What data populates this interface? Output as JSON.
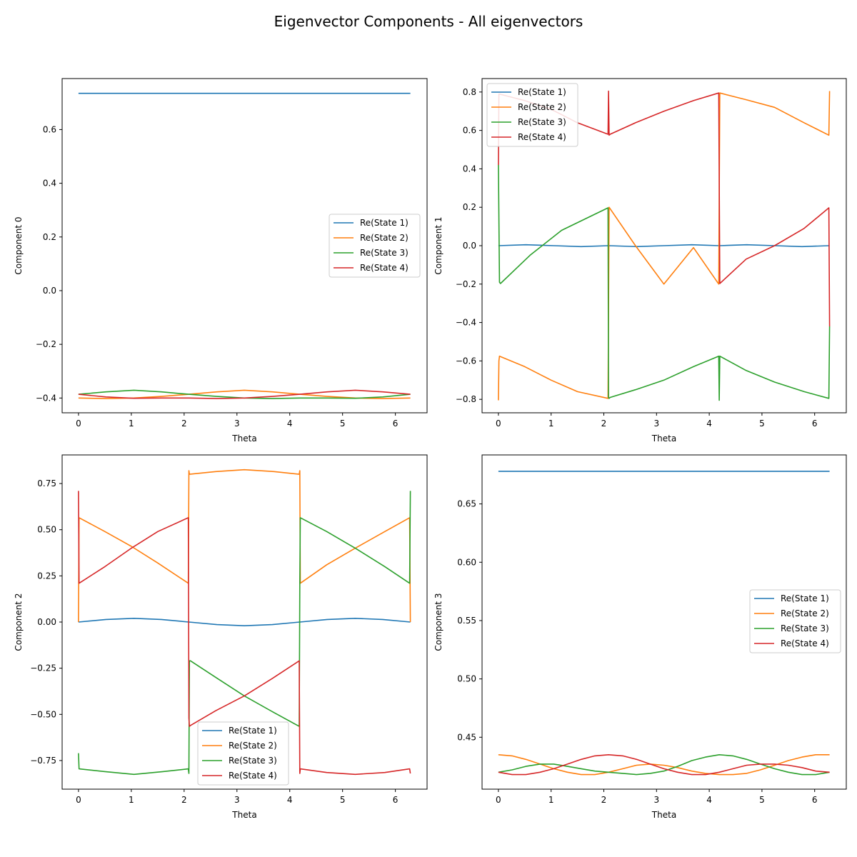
{
  "figure": {
    "title": "Eigenvector Components - All eigenvectors"
  },
  "colors": {
    "state1": "#1f77b4",
    "state2": "#ff7f0e",
    "state3": "#2ca02c",
    "state4": "#d62728"
  },
  "chart_data": [
    {
      "type": "line",
      "xlabel": "Theta",
      "ylabel": "Component 0",
      "xlim": [
        -0.31,
        6.6
      ],
      "ylim": [
        -0.455,
        0.79
      ],
      "xticks": [
        "0",
        "1",
        "2",
        "3",
        "4",
        "5",
        "6"
      ],
      "yticks": [
        "0.6",
        "0.4",
        "0.2",
        "0.0",
        "−0.2",
        "−0.4"
      ],
      "ytick_values": [
        0.6,
        0.4,
        0.2,
        0.0,
        -0.2,
        -0.4
      ],
      "legend": "center-right",
      "series": [
        {
          "name": "Re(State 1)",
          "x": [
            0,
            6.283
          ],
          "y": [
            0.735,
            0.735
          ]
        },
        {
          "name": "Re(State 2)",
          "x": [
            0,
            0.52,
            1.05,
            1.57,
            2.09,
            2.62,
            3.14,
            3.67,
            4.19,
            4.71,
            5.24,
            5.76,
            6.283
          ],
          "y": [
            -0.4,
            -0.402,
            -0.4,
            -0.394,
            -0.386,
            -0.377,
            -0.371,
            -0.377,
            -0.386,
            -0.394,
            -0.4,
            -0.402,
            -0.4
          ]
        },
        {
          "name": "Re(State 3)",
          "x": [
            0,
            0.52,
            1.05,
            1.57,
            2.09,
            2.62,
            3.14,
            3.67,
            4.19,
            4.71,
            5.24,
            5.76,
            6.283
          ],
          "y": [
            -0.386,
            -0.377,
            -0.371,
            -0.377,
            -0.386,
            -0.394,
            -0.4,
            -0.402,
            -0.4,
            -0.4,
            -0.401,
            -0.396,
            -0.386
          ]
        },
        {
          "name": "Re(State 4)",
          "x": [
            0,
            0.52,
            1.05,
            1.57,
            2.09,
            2.62,
            3.14,
            3.67,
            4.19,
            4.71,
            5.24,
            5.76,
            6.283
          ],
          "y": [
            -0.386,
            -0.396,
            -0.401,
            -0.4,
            -0.4,
            -0.402,
            -0.4,
            -0.394,
            -0.386,
            -0.377,
            -0.371,
            -0.377,
            -0.386
          ]
        }
      ]
    },
    {
      "type": "line",
      "xlabel": "Theta",
      "ylabel": "Component 1",
      "xlim": [
        -0.31,
        6.6
      ],
      "ylim": [
        -0.87,
        0.87
      ],
      "xticks": [
        "0",
        "1",
        "2",
        "3",
        "4",
        "5",
        "6"
      ],
      "yticks": [
        "0.8",
        "0.6",
        "0.4",
        "0.2",
        "0.0",
        "−0.2",
        "−0.4",
        "−0.6",
        "−0.8"
      ],
      "ytick_values": [
        0.8,
        0.6,
        0.4,
        0.2,
        0.0,
        -0.2,
        -0.4,
        -0.6,
        -0.8
      ],
      "legend": "top-left",
      "series": [
        {
          "name": "Re(State 1)",
          "x": [
            0,
            0.52,
            1.05,
            1.57,
            2.09,
            2.62,
            3.14,
            3.67,
            4.19,
            4.71,
            5.24,
            5.76,
            6.283
          ],
          "y": [
            0,
            0.005,
            0,
            -0.005,
            0,
            -0.005,
            0,
            0.005,
            0,
            0.005,
            0,
            -0.005,
            0
          ]
        },
        {
          "name": "Re(State 2)",
          "x": [
            0,
            0.01,
            0.02,
            0.5,
            1.0,
            1.5,
            2.08,
            2.1,
            2.6,
            3.14,
            3.7,
            4.18,
            4.2,
            4.7,
            5.24,
            5.8,
            6.27,
            6.283
          ],
          "y": [
            -0.805,
            -0.6,
            -0.575,
            -0.63,
            -0.7,
            -0.76,
            -0.795,
            0.2,
            0.0,
            -0.2,
            -0.01,
            -0.2,
            0.795,
            0.76,
            0.72,
            0.64,
            0.575,
            0.805
          ]
        },
        {
          "name": "Re(State 3)",
          "x": [
            0,
            0.02,
            0.04,
            0.6,
            1.2,
            2.08,
            2.09,
            2.1,
            2.12,
            2.6,
            3.14,
            3.7,
            4.18,
            4.19,
            4.2,
            4.7,
            5.24,
            5.8,
            6.27,
            6.283
          ],
          "y": [
            0.42,
            -0.19,
            -0.197,
            -0.05,
            0.08,
            0.197,
            -0.79,
            -0.795,
            -0.79,
            -0.75,
            -0.7,
            -0.63,
            -0.575,
            -0.805,
            -0.575,
            -0.65,
            -0.71,
            -0.76,
            -0.795,
            -0.42
          ]
        },
        {
          "name": "Re(State 4)",
          "x": [
            0,
            0.01,
            0.5,
            1.0,
            1.5,
            2.08,
            2.09,
            2.1,
            2.12,
            2.6,
            3.14,
            3.7,
            4.18,
            4.2,
            4.7,
            5.24,
            5.8,
            6.27,
            6.283
          ],
          "y": [
            0.42,
            0.79,
            0.755,
            0.71,
            0.64,
            0.58,
            0.805,
            0.575,
            0.58,
            0.64,
            0.7,
            0.755,
            0.795,
            -0.197,
            -0.07,
            0.0,
            0.09,
            0.197,
            -0.42
          ]
        }
      ]
    },
    {
      "type": "line",
      "xlabel": "Theta",
      "ylabel": "Component 2",
      "xlim": [
        -0.31,
        6.6
      ],
      "ylim": [
        -0.905,
        0.905
      ],
      "xticks": [
        "0",
        "1",
        "2",
        "3",
        "4",
        "5",
        "6"
      ],
      "yticks": [
        "0.75",
        "0.50",
        "0.25",
        "0.00",
        "−0.25",
        "−0.50",
        "−0.75"
      ],
      "ytick_values": [
        0.75,
        0.5,
        0.25,
        0.0,
        -0.25,
        -0.5,
        -0.75
      ],
      "legend": "bottom-center",
      "series": [
        {
          "name": "Re(State 1)",
          "x": [
            0,
            0.52,
            1.05,
            1.57,
            2.09,
            2.62,
            3.14,
            3.67,
            4.19,
            4.71,
            5.24,
            5.76,
            6.283
          ],
          "y": [
            0,
            0.014,
            0.02,
            0.014,
            0,
            -0.014,
            -0.02,
            -0.014,
            0,
            0.014,
            0.02,
            0.014,
            0
          ]
        },
        {
          "name": "Re(State 2)",
          "x": [
            0,
            0.01,
            0.5,
            1.0,
            1.5,
            2.08,
            2.09,
            2.1,
            2.6,
            3.14,
            3.7,
            4.18,
            4.19,
            4.2,
            4.7,
            5.24,
            5.8,
            6.27,
            6.283
          ],
          "y": [
            0,
            0.565,
            0.49,
            0.41,
            0.32,
            0.21,
            0.82,
            0.8,
            0.815,
            0.825,
            0.815,
            0.8,
            0.82,
            0.21,
            0.31,
            0.4,
            0.49,
            0.565,
            0
          ]
        },
        {
          "name": "Re(State 3)",
          "x": [
            0,
            0.01,
            0.5,
            1.05,
            1.6,
            2.08,
            2.09,
            2.1,
            2.12,
            2.6,
            3.14,
            3.7,
            4.18,
            4.19,
            4.2,
            4.7,
            5.24,
            5.8,
            6.27,
            6.283
          ],
          "y": [
            -0.71,
            -0.795,
            -0.81,
            -0.825,
            -0.81,
            -0.795,
            -0.82,
            -0.21,
            -0.21,
            -0.3,
            -0.4,
            -0.49,
            -0.565,
            0.21,
            0.565,
            0.49,
            0.4,
            0.3,
            0.21,
            0.71
          ]
        },
        {
          "name": "Re(State 4)",
          "x": [
            0,
            0.01,
            0.5,
            1.0,
            1.5,
            2.08,
            2.09,
            2.1,
            2.12,
            2.6,
            3.14,
            3.7,
            4.18,
            4.19,
            4.2,
            4.7,
            5.24,
            5.8,
            6.27,
            6.283
          ],
          "y": [
            0.71,
            0.21,
            0.3,
            0.4,
            0.49,
            0.565,
            -0.52,
            -0.565,
            -0.56,
            -0.48,
            -0.4,
            -0.3,
            -0.21,
            -0.82,
            -0.795,
            -0.815,
            -0.825,
            -0.815,
            -0.795,
            -0.82
          ]
        }
      ]
    },
    {
      "type": "line",
      "xlabel": "Theta",
      "ylabel": "Component 3",
      "xlim": [
        -0.31,
        6.6
      ],
      "ylim": [
        0.4055,
        0.692
      ],
      "xticks": [
        "0",
        "1",
        "2",
        "3",
        "4",
        "5",
        "6"
      ],
      "yticks": [
        "0.65",
        "0.60",
        "0.55",
        "0.50",
        "0.45"
      ],
      "ytick_values": [
        0.65,
        0.6,
        0.55,
        0.5,
        0.45
      ],
      "legend": "center-right",
      "series": [
        {
          "name": "Re(State 1)",
          "x": [
            0,
            6.283
          ],
          "y": [
            0.678,
            0.678
          ]
        },
        {
          "name": "Re(State 2)",
          "x": [
            0,
            0.26,
            0.52,
            0.79,
            1.05,
            1.31,
            1.57,
            1.83,
            2.09,
            2.36,
            2.62,
            2.88,
            3.14,
            3.4,
            3.67,
            3.93,
            4.19,
            4.45,
            4.71,
            4.97,
            5.24,
            5.5,
            5.76,
            6.02,
            6.283
          ],
          "y": [
            0.435,
            0.434,
            0.431,
            0.427,
            0.423,
            0.42,
            0.418,
            0.418,
            0.42,
            0.423,
            0.426,
            0.427,
            0.426,
            0.424,
            0.421,
            0.419,
            0.418,
            0.418,
            0.419,
            0.422,
            0.426,
            0.43,
            0.433,
            0.435,
            0.435
          ]
        },
        {
          "name": "Re(State 3)",
          "x": [
            0,
            0.26,
            0.52,
            0.79,
            1.05,
            1.31,
            1.57,
            1.83,
            2.09,
            2.36,
            2.62,
            2.88,
            3.14,
            3.4,
            3.67,
            3.93,
            4.19,
            4.45,
            4.71,
            4.97,
            5.24,
            5.5,
            5.76,
            6.02,
            6.283
          ],
          "y": [
            0.42,
            0.422,
            0.425,
            0.427,
            0.427,
            0.425,
            0.423,
            0.421,
            0.42,
            0.419,
            0.418,
            0.419,
            0.421,
            0.425,
            0.43,
            0.433,
            0.435,
            0.434,
            0.431,
            0.427,
            0.423,
            0.42,
            0.418,
            0.418,
            0.42
          ]
        },
        {
          "name": "Re(State 4)",
          "x": [
            0,
            0.26,
            0.52,
            0.79,
            1.05,
            1.31,
            1.57,
            1.83,
            2.09,
            2.36,
            2.62,
            2.88,
            3.14,
            3.4,
            3.67,
            3.93,
            4.19,
            4.45,
            4.71,
            4.97,
            5.24,
            5.5,
            5.76,
            6.02,
            6.283
          ],
          "y": [
            0.42,
            0.418,
            0.418,
            0.42,
            0.423,
            0.427,
            0.431,
            0.434,
            0.435,
            0.434,
            0.431,
            0.427,
            0.423,
            0.42,
            0.418,
            0.418,
            0.42,
            0.423,
            0.426,
            0.427,
            0.427,
            0.426,
            0.424,
            0.421,
            0.42
          ]
        }
      ]
    }
  ]
}
